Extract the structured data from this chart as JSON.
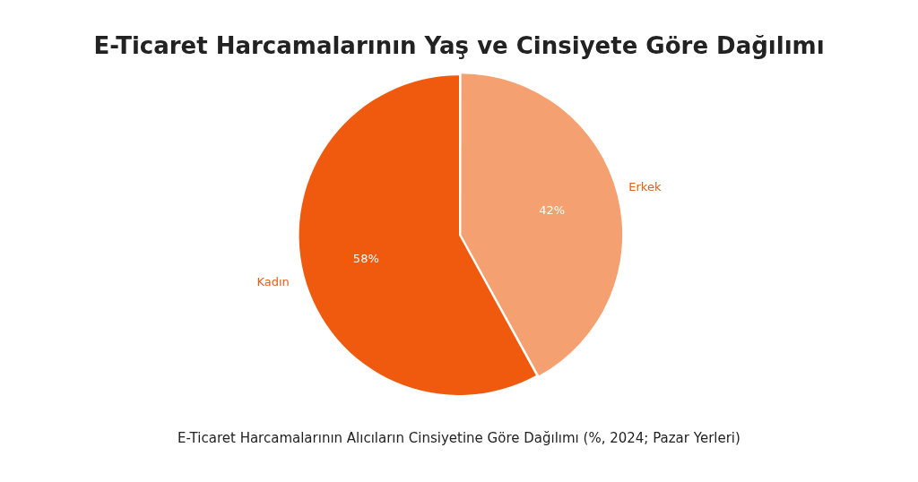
{
  "chart_data": {
    "type": "pie",
    "title": "E-Ticaret Harcamalarının Yaş ve Cinsiyete Göre Dağılımı",
    "categories": [
      "Erkek",
      "Kadın"
    ],
    "values": [
      42,
      58
    ],
    "colors": [
      "#f4a070",
      "#f05a0e"
    ],
    "value_labels": [
      "42%",
      "58%"
    ],
    "legend": false,
    "annotations": [
      "E-Ticaret Harcamalarının Alıcıların Cinsiyetine Göre Dağılımı (%, 2024; Pazar Yerleri)"
    ]
  }
}
